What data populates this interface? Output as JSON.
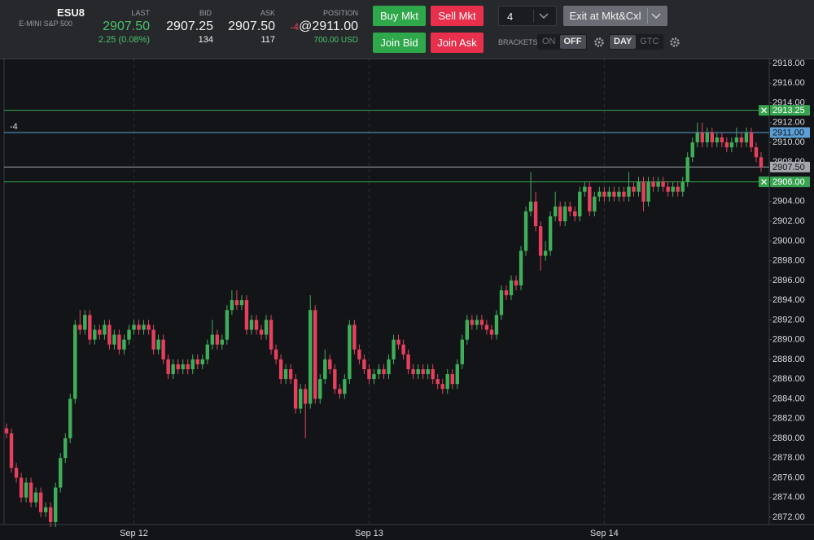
{
  "header": {
    "symbol": "ESU8",
    "symbol_name": "E-MINI S&P 500",
    "last": {
      "label": "LAST",
      "value": "2907.50",
      "change": "2.25 (0.08%)"
    },
    "bid": {
      "label": "BID",
      "value": "2907.25",
      "size": "134"
    },
    "ask": {
      "label": "ASK",
      "value": "2907.50",
      "size": "117"
    },
    "position": {
      "label": "POSITION",
      "qty": "-4",
      "price": "@2911.00",
      "pnl": "700.00 USD"
    },
    "buttons": {
      "buy_mkt": "Buy Mkt",
      "sell_mkt": "Sell Mkt",
      "join_bid": "Join Bid",
      "join_ask": "Join Ask",
      "exit": "Exit at Mkt&Cxl"
    },
    "quantity": "4",
    "brackets": {
      "label": "BRACKETS",
      "on": "ON",
      "off": "OFF"
    },
    "tif": {
      "day": "DAY",
      "gtc": "GTC"
    }
  },
  "chart_data": {
    "type": "candlestick",
    "up_color": "#3fae5a",
    "down_color": "#e5405e",
    "grid": "x",
    "categories": [
      null,
      null,
      null,
      null,
      null,
      null,
      null,
      null,
      null,
      null,
      null,
      null,
      null,
      null,
      null,
      null,
      null,
      null,
      null,
      null,
      null,
      null,
      null,
      null,
      null,
      null,
      "Sep 12",
      null,
      null,
      null,
      null,
      null,
      null,
      null,
      null,
      null,
      null,
      null,
      null,
      null,
      null,
      null,
      null,
      null,
      null,
      null,
      null,
      null,
      null,
      null,
      null,
      null,
      null,
      null,
      null,
      null,
      null,
      null,
      null,
      null,
      null,
      null,
      null,
      null,
      null,
      null,
      null,
      null,
      null,
      null,
      null,
      null,
      null,
      null,
      "Sep 13",
      null,
      null,
      null,
      null,
      null,
      null,
      null,
      null,
      null,
      null,
      null,
      null,
      null,
      null,
      null,
      null,
      null,
      null,
      null,
      null,
      null,
      null,
      null,
      null,
      null,
      null,
      null,
      null,
      null,
      null,
      null,
      null,
      null,
      null,
      null,
      null,
      null,
      null,
      null,
      null,
      null,
      null,
      null,
      null,
      null,
      null,
      null,
      "Sep 14",
      null,
      null,
      null,
      null,
      null,
      null,
      null,
      null,
      null,
      null,
      null,
      null,
      null,
      null,
      null,
      null,
      null,
      null,
      null,
      null,
      null,
      null,
      null,
      null,
      null,
      null,
      null,
      null,
      null,
      null,
      null,
      null
    ],
    "open": [
      2881,
      2880.5,
      2877,
      2876,
      2874,
      2875.5,
      2873.5,
      2874.5,
      2872.5,
      2873,
      2871.5,
      2875,
      2878,
      2880,
      2884,
      2891.5,
      2891,
      2892.5,
      2890,
      2891,
      2890.5,
      2891.5,
      2889.5,
      2890.5,
      2889,
      2890,
      2891,
      2891.5,
      2891,
      2891.5,
      2891,
      2889,
      2890,
      2888,
      2886.5,
      2887.5,
      2887,
      2887.5,
      2887,
      2888,
      2887.5,
      2888,
      2889.5,
      2890.5,
      2889.5,
      2890,
      2893,
      2894,
      2893.5,
      2894,
      2891,
      2892,
      2891,
      2890.5,
      2892,
      2889,
      2888,
      2886,
      2887,
      2886,
      2883,
      2885,
      2883.5,
      2893,
      2884,
      2886,
      2888,
      2887,
      2885,
      2884.5,
      2886,
      2891.5,
      2889,
      2888,
      2887,
      2886,
      2886.5,
      2887,
      2886.5,
      2888,
      2890,
      2889.5,
      2888.5,
      2887,
      2886.5,
      2887,
      2886.5,
      2887,
      2886,
      2885.5,
      2885,
      2886.5,
      2885.5,
      2887.5,
      2890,
      2892,
      2891.5,
      2892,
      2891.5,
      2891,
      2890.5,
      2892.5,
      2895,
      2894.5,
      2896,
      2895.5,
      2899,
      2903,
      2904,
      2901.5,
      2898.5,
      2899,
      2902.5,
      2903.5,
      2902,
      2903.5,
      2903,
      2902.5,
      2905,
      2905.5,
      2903,
      2904.5,
      2905,
      2904.5,
      2905,
      2904.5,
      2905,
      2904.5,
      2905.5,
      2905,
      2906,
      2904,
      2906,
      2905.5,
      2906,
      2905.5,
      2905,
      2905.5,
      2905,
      2906,
      2908.5,
      2910,
      2911,
      2910,
      2911,
      2910,
      2910.5,
      2910,
      2909.5,
      2910,
      2910.5,
      2910,
      2911,
      2909.5,
      2908.5
    ],
    "high": [
      2881.5,
      2881,
      2877.5,
      2876.5,
      2876,
      2876,
      2875,
      2875,
      2873.5,
      2873.5,
      2875.5,
      2878.5,
      2880.5,
      2884.5,
      2892,
      2893,
      2893,
      2893,
      2891.5,
      2891.5,
      2892,
      2892,
      2891,
      2891,
      2890.5,
      2891.5,
      2892,
      2892,
      2892,
      2892,
      2891.5,
      2890.5,
      2890.5,
      2888.5,
      2888,
      2888,
      2888,
      2888,
      2888.5,
      2888.5,
      2888.5,
      2890,
      2892,
      2891,
      2890.5,
      2893.5,
      2895,
      2895,
      2894.5,
      2894.5,
      2892.5,
      2892.5,
      2891.5,
      2892.5,
      2892.5,
      2889.5,
      2888.5,
      2887.5,
      2887.5,
      2886.5,
      2885.5,
      2885.5,
      2894.5,
      2893.5,
      2886.5,
      2889,
      2888.5,
      2887.5,
      2885.5,
      2886.5,
      2892,
      2892,
      2889.5,
      2888.5,
      2887.5,
      2887,
      2887.5,
      2887.5,
      2888.5,
      2890.5,
      2890.5,
      2890,
      2889,
      2887.5,
      2887.5,
      2887.5,
      2887.5,
      2887.5,
      2886.5,
      2886,
      2887,
      2887,
      2888,
      2890.5,
      2892.5,
      2892.5,
      2892.5,
      2892.5,
      2892,
      2891.5,
      2893,
      2895.5,
      2895.5,
      2896.5,
      2896.5,
      2899.5,
      2903.5,
      2907,
      2905,
      2902,
      2900,
      2903,
      2905,
      2904,
      2904,
      2904,
      2903.5,
      2905.5,
      2906,
      2906,
      2905,
      2905.5,
      2905.5,
      2905.5,
      2905.5,
      2905.5,
      2905.5,
      2907,
      2906,
      2906.5,
      2906.5,
      2906.5,
      2906.5,
      2906.5,
      2906.5,
      2906,
      2906,
      2906,
      2906.5,
      2909,
      2910.5,
      2912,
      2912,
      2911.5,
      2911.5,
      2911,
      2911,
      2910.5,
      2910.5,
      2911.5,
      2911,
      2911.5,
      2911.5,
      2910,
      2909
    ],
    "low": [
      2880,
      2876.5,
      2875.5,
      2873.5,
      2873.5,
      2873,
      2873,
      2872,
      2872,
      2871,
      2871,
      2874.5,
      2877.5,
      2879.5,
      2883.5,
      2890.5,
      2890.5,
      2889.5,
      2889.5,
      2890,
      2890,
      2889,
      2889,
      2888.5,
      2888.5,
      2889.5,
      2890.5,
      2890.5,
      2890.5,
      2890.5,
      2888.5,
      2888.5,
      2887.5,
      2886,
      2886,
      2886.5,
      2886.5,
      2886.5,
      2886.5,
      2887,
      2887,
      2887.5,
      2889,
      2889,
      2889,
      2889.5,
      2892.5,
      2893,
      2893,
      2890.5,
      2890.5,
      2890.5,
      2890,
      2890,
      2888.5,
      2887.5,
      2885.5,
      2885.5,
      2885.5,
      2882.5,
      2882.5,
      2880,
      2883,
      2883.5,
      2883.5,
      2885.5,
      2886.5,
      2884.5,
      2884,
      2884,
      2885.5,
      2888.5,
      2887.5,
      2886.5,
      2885.5,
      2885.5,
      2886,
      2886,
      2886,
      2887.5,
      2889,
      2888,
      2886.5,
      2886,
      2886,
      2886,
      2886,
      2885.5,
      2885,
      2884.5,
      2884.5,
      2885,
      2885,
      2887,
      2889.5,
      2891,
      2891,
      2891,
      2890.5,
      2890,
      2890,
      2892,
      2894,
      2894,
      2895,
      2895,
      2898.5,
      2902.5,
      2901,
      2897,
      2898,
      2898.5,
      2902,
      2901.5,
      2901.5,
      2902.5,
      2902,
      2902,
      2904.5,
      2902.5,
      2902.5,
      2904,
      2904,
      2904,
      2904,
      2904,
      2904,
      2904,
      2904.5,
      2904.5,
      2903,
      2903.5,
      2905,
      2905,
      2905,
      2904.5,
      2904.5,
      2904.5,
      2904.5,
      2905.5,
      2908,
      2909.5,
      2909.5,
      2909.5,
      2909.5,
      2909.5,
      2909.5,
      2909,
      2909,
      2909.5,
      2909.5,
      2909.5,
      2909,
      2908,
      2907
    ],
    "close": [
      2880.5,
      2877,
      2876,
      2874,
      2875.5,
      2873.5,
      2874.5,
      2872.5,
      2873,
      2871.5,
      2875,
      2878,
      2880,
      2884,
      2891.5,
      2891,
      2892.5,
      2890,
      2891,
      2890.5,
      2891.5,
      2889.5,
      2890.5,
      2889,
      2890,
      2891,
      2891.5,
      2891,
      2891.5,
      2891,
      2889,
      2890,
      2888,
      2886.5,
      2887.5,
      2887,
      2887.5,
      2887,
      2888,
      2887.5,
      2888,
      2889.5,
      2890.5,
      2889.5,
      2890,
      2893,
      2894,
      2893.5,
      2894,
      2891,
      2892,
      2891,
      2890.5,
      2892,
      2889,
      2888,
      2886,
      2887,
      2886,
      2883,
      2885,
      2883.5,
      2893,
      2884,
      2886,
      2888,
      2887,
      2885,
      2884.5,
      2886,
      2891.5,
      2889,
      2888,
      2887,
      2886,
      2886.5,
      2887,
      2886.5,
      2888,
      2890,
      2889.5,
      2888.5,
      2887,
      2886.5,
      2887,
      2886.5,
      2887,
      2886,
      2885.5,
      2885,
      2886.5,
      2885.5,
      2887.5,
      2890,
      2892,
      2891.5,
      2892,
      2891.5,
      2891,
      2890.5,
      2892.5,
      2895,
      2894.5,
      2896,
      2895.5,
      2899,
      2903,
      2904,
      2901.5,
      2898.5,
      2899,
      2902.5,
      2903.5,
      2902,
      2903.5,
      2903,
      2902.5,
      2905,
      2905.5,
      2903,
      2904.5,
      2905,
      2904.5,
      2905,
      2904.5,
      2905,
      2904.5,
      2905.5,
      2905,
      2906,
      2904,
      2906,
      2905.5,
      2906,
      2905.5,
      2905,
      2905.5,
      2905,
      2906,
      2908.5,
      2910,
      2911,
      2910,
      2911,
      2910,
      2910.5,
      2910,
      2909.5,
      2910,
      2910.5,
      2910,
      2911,
      2909.5,
      2908.5,
      2907.5
    ],
    "ylim": [
      2871.25,
      2918.5
    ],
    "yticks": [
      {
        "value": 2872,
        "label": "2872.00"
      },
      {
        "value": 2874,
        "label": "2874.00"
      },
      {
        "value": 2876,
        "label": "2876.00"
      },
      {
        "value": 2878,
        "label": "2878.00"
      },
      {
        "value": 2880,
        "label": "2880.00"
      },
      {
        "value": 2882,
        "label": "2882.00"
      },
      {
        "value": 2884,
        "label": "2884.00"
      },
      {
        "value": 2886,
        "label": "2886.00"
      },
      {
        "value": 2888,
        "label": "2888.00"
      },
      {
        "value": 2890,
        "label": "2890.00"
      },
      {
        "value": 2892,
        "label": "2892.00"
      },
      {
        "value": 2894,
        "label": "2894.00"
      },
      {
        "value": 2896,
        "label": "2896.00"
      },
      {
        "value": 2898,
        "label": "2898.00"
      },
      {
        "value": 2900,
        "label": "2900.00"
      },
      {
        "value": 2902,
        "label": "2902.00"
      },
      {
        "value": 2904,
        "label": "2904.00"
      },
      {
        "value": 2906,
        "label": "2906.00"
      },
      {
        "value": 2908,
        "label": "2908.00"
      },
      {
        "value": 2910,
        "label": "2910.00"
      },
      {
        "value": 2912,
        "label": "2912.00"
      },
      {
        "value": 2914,
        "label": "2914.00"
      },
      {
        "value": 2916,
        "label": "2916.00"
      },
      {
        "value": 2918,
        "label": "2918.00"
      }
    ],
    "lines": [
      {
        "value": 2913.25,
        "label": "2913.25",
        "color": "#37a34f",
        "text_color": "#ffffff",
        "cancel_icon": true
      },
      {
        "value": 2911,
        "label": "2911.00",
        "color": "#5b9fd4",
        "text_color": "#10161c",
        "annotation": "-4"
      },
      {
        "value": 2907.5,
        "label": "2907.50",
        "color": "#a3a6ac",
        "text_color": "#15171a"
      },
      {
        "value": 2906,
        "label": "2906.00",
        "color": "#37a34f",
        "text_color": "#ffffff",
        "cancel_icon": true
      }
    ]
  }
}
